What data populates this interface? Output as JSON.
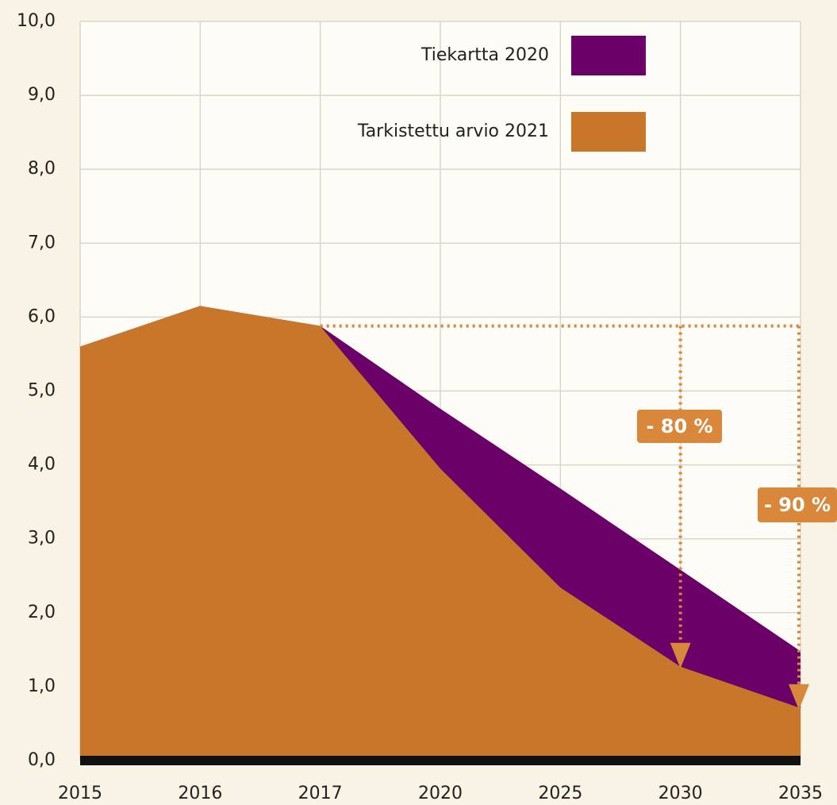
{
  "chart_data": {
    "type": "area",
    "categories": [
      "2015",
      "2016",
      "2017",
      "2020",
      "2025",
      "2030",
      "2035"
    ],
    "series": [
      {
        "name": "Tiekartta 2020",
        "color": "#6b0068",
        "values": [
          5.6,
          6.15,
          5.88,
          4.76,
          3.68,
          2.58,
          1.48
        ]
      },
      {
        "name": "Tarkistettu arvio 2021",
        "color": "#c8772a",
        "values": [
          5.6,
          6.15,
          5.88,
          3.95,
          2.34,
          1.27,
          0.71
        ]
      }
    ],
    "ylim": [
      0,
      10
    ],
    "yticks": [
      {
        "value": 0,
        "label": "0,0"
      },
      {
        "value": 1,
        "label": "1,0"
      },
      {
        "value": 2,
        "label": "2,0"
      },
      {
        "value": 3,
        "label": "3,0"
      },
      {
        "value": 4,
        "label": "4,0"
      },
      {
        "value": 5,
        "label": "5,0"
      },
      {
        "value": 6,
        "label": "6,0"
      },
      {
        "value": 7,
        "label": "7,0"
      },
      {
        "value": 8,
        "label": "8,0"
      },
      {
        "value": 9,
        "label": "9,0"
      },
      {
        "value": 10,
        "label": "10,0"
      }
    ],
    "grid": true,
    "legend": "top-right",
    "annotations": [
      "- 80 %",
      "- 90 %"
    ]
  }
}
